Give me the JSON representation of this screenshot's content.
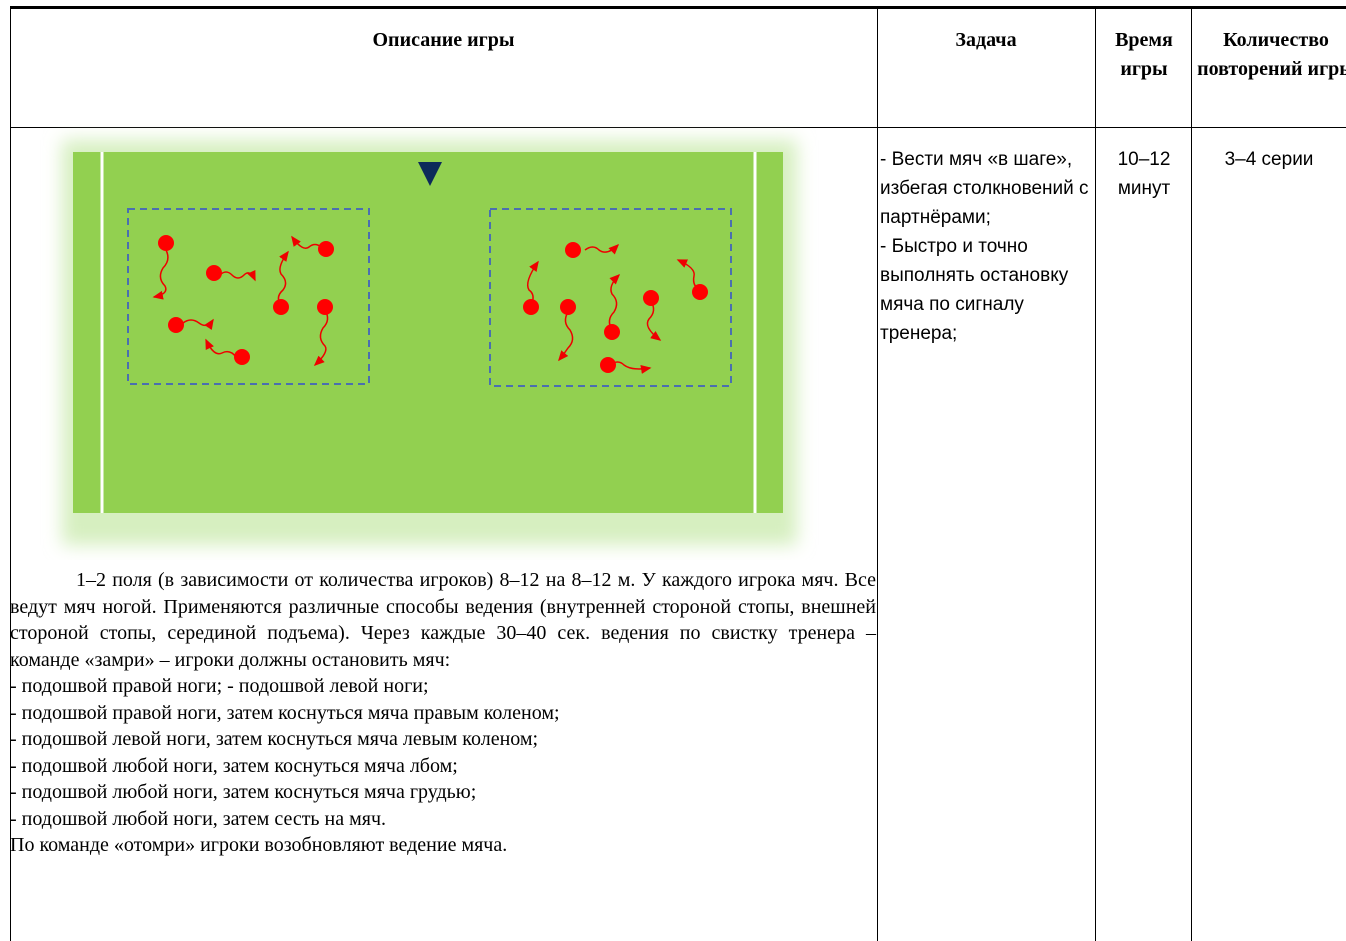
{
  "table": {
    "header": [
      "Описание игры",
      "Задача",
      "Время игры",
      "Количество повторений игры"
    ],
    "description": {
      "paragraph": "1–2 поля (в зависимости от количества игроков) 8–12 на 8–12 м. У каждого игрока мяч. Все ведут мяч ногой. Применяются различные способы ведения (внутренней стороной стопы, внешней стороной стопы, серединой подъема). Через каждые 30–40 сек. ведения по свистку тренера – команде «замри» – игроки должны остановить мяч:",
      "lines": [
        "- подошвой правой ноги; - подошвой левой ноги;",
        "- подошвой правой ноги, затем коснуться мяча правым коленом;",
        "- подошвой левой ноги, затем коснуться мяча левым коленом;",
        "- подошвой любой ноги, затем коснуться мяча лбом;",
        "- подошвой любой ноги, затем коснуться мяча грудью;",
        "- подошвой любой ноги, затем сесть на мяч.",
        "По команде «отомри» игроки возобновляют ведение мяча."
      ]
    },
    "task": [
      "- Вести мяч «в шаге», избегая столкновений с партнёрами;",
      "- Быстро и точно выполнять остановку мяча по сигналу тренера;"
    ],
    "time": "10–12 минут",
    "repeats": "3–4 серии"
  }
}
